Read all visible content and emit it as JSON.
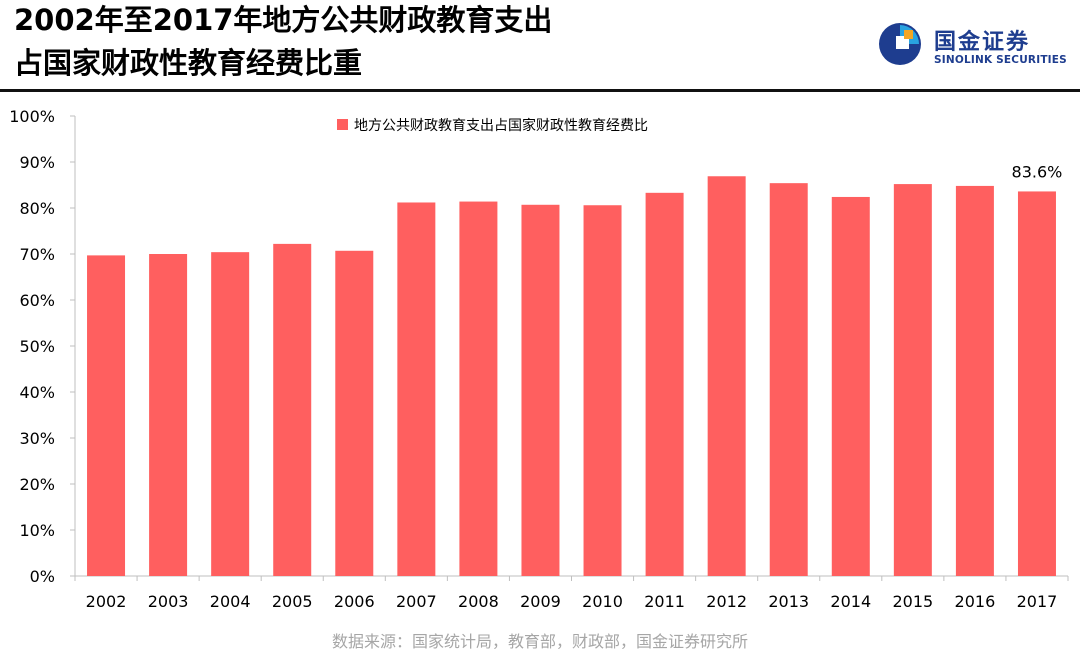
{
  "header": {
    "title_line1": "2002年至2017年地方公共财政教育支出",
    "title_line2": "占国家财政性教育经费比重"
  },
  "logo": {
    "name_cn": "国金证券",
    "name_en": "SINOLINK SECURITIES",
    "icon": "sinolink-logo-icon",
    "colors": {
      "primary": "#1e3d8f",
      "light": "#29a3e0",
      "accent": "#f5a623"
    }
  },
  "chart_data": {
    "type": "bar",
    "categories": [
      "2002",
      "2003",
      "2004",
      "2005",
      "2006",
      "2007",
      "2008",
      "2009",
      "2010",
      "2011",
      "2012",
      "2013",
      "2014",
      "2015",
      "2016",
      "2017"
    ],
    "series": [
      {
        "name": "地方公共财政教育支出占国家财政性教育经费比",
        "values": [
          69.7,
          70.0,
          70.4,
          72.2,
          70.7,
          81.2,
          81.4,
          80.7,
          80.6,
          83.3,
          86.9,
          85.4,
          82.4,
          85.2,
          84.8,
          83.6
        ],
        "color": "#ff5f5f"
      }
    ],
    "ylim": [
      0,
      100
    ],
    "yticks": [
      "0%",
      "10%",
      "20%",
      "30%",
      "40%",
      "50%",
      "60%",
      "70%",
      "80%",
      "90%",
      "100%"
    ],
    "annotations": [
      {
        "category": "2017",
        "text": "83.6%"
      }
    ],
    "legend_position": "top-center",
    "grid": false,
    "xlabel": "",
    "ylabel": ""
  },
  "source": "数据来源：国家统计局，教育部，财政部，国金证券研究所"
}
